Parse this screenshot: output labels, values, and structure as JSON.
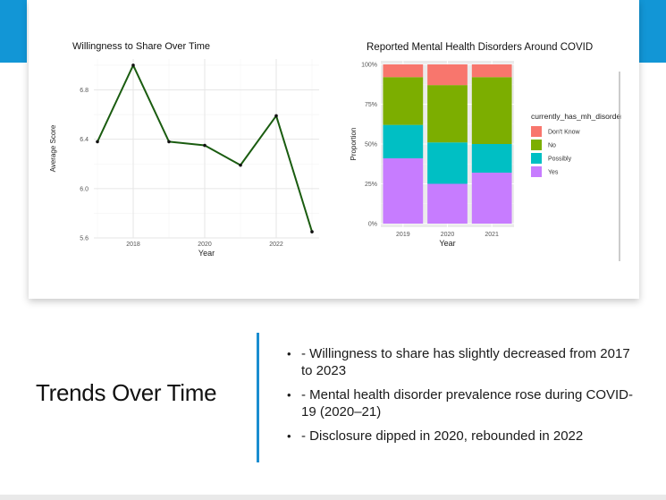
{
  "slide": {
    "title": "Trends Over Time",
    "bullets": [
      "- Willingness to share has slightly decreased from 2017 to 2023",
      "- Mental health disorder prevalence rose during COVID-19 (2020–21)",
      "- Disclosure dipped in 2020, rebounded in 2022"
    ],
    "accent_color": "#1296d6"
  },
  "chart_data": [
    {
      "type": "line",
      "title": "Willingness to Share Over Time",
      "xlabel": "Year",
      "ylabel": "Average Score",
      "x": [
        2017,
        2018,
        2019,
        2020,
        2021,
        2022,
        2023
      ],
      "y": [
        6.38,
        7.0,
        6.38,
        6.35,
        6.19,
        6.59,
        5.65
      ],
      "xticks": [
        "2018",
        "2020",
        "2022"
      ],
      "yticks": [
        "5.6",
        "6.0",
        "6.4",
        "6.8"
      ],
      "xlim": [
        2016.9,
        2023.2
      ],
      "ylim": [
        5.6,
        7.05
      ],
      "grid": true,
      "line_color": "#1a5c10"
    },
    {
      "type": "bar",
      "stacked": true,
      "title": "Reported Mental Health Disorders Around COVID",
      "xlabel": "Year",
      "ylabel": "Proportion",
      "categories": [
        "2019",
        "2020",
        "2021"
      ],
      "yticks": [
        "0%",
        "25%",
        "50%",
        "75%",
        "100%"
      ],
      "ylim": [
        0,
        1
      ],
      "legend_title": "currently_has_mh_disorder",
      "legend_position": "right",
      "series": [
        {
          "name": "Yes",
          "values": [
            0.41,
            0.25,
            0.32
          ],
          "color": "#c77cff"
        },
        {
          "name": "Possibly",
          "values": [
            0.21,
            0.26,
            0.18
          ],
          "color": "#00bfc4"
        },
        {
          "name": "No",
          "values": [
            0.3,
            0.36,
            0.42
          ],
          "color": "#7cae00"
        },
        {
          "name": "Don't Know",
          "values": [
            0.08,
            0.13,
            0.08
          ],
          "color": "#f8766d"
        }
      ]
    }
  ]
}
